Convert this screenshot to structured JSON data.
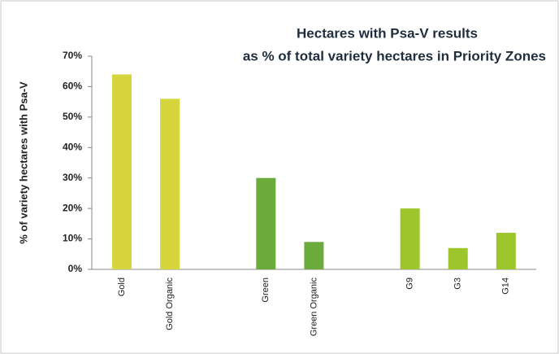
{
  "chart_data": {
    "type": "bar",
    "title_lines": [
      "Hectares with Psa-V results",
      "as % of total variety hectares in Priority Zones"
    ],
    "y_label": "% of variety hectares with Psa-V",
    "categories": [
      "Gold",
      "Gold Organic",
      null,
      "Green",
      "Green Organic",
      null,
      "G9",
      "G3",
      "G14"
    ],
    "values": [
      64,
      56,
      null,
      30,
      9,
      null,
      20,
      7,
      12
    ],
    "colors": [
      "#d6d63c",
      "#d6d63c",
      null,
      "#6aab3c",
      "#6aab3c",
      null,
      "#9cc62c",
      "#9cc62c",
      "#9cc62c"
    ],
    "ylim": [
      0,
      70
    ],
    "yticks": [
      {
        "value": 0,
        "label": "0%"
      },
      {
        "value": 10,
        "label": "10%"
      },
      {
        "value": 20,
        "label": "20%"
      },
      {
        "value": 30,
        "label": "30%"
      },
      {
        "value": 40,
        "label": "40%"
      },
      {
        "value": 50,
        "label": "50%"
      },
      {
        "value": 60,
        "label": "60%"
      },
      {
        "value": 70,
        "label": "70%"
      }
    ],
    "grid": false
  }
}
